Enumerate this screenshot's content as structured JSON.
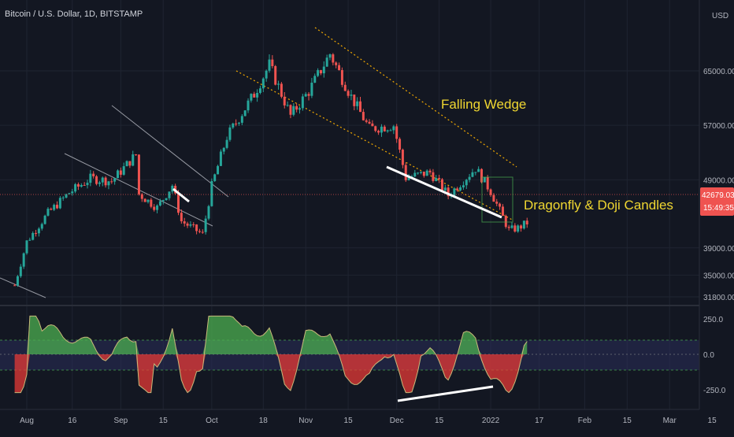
{
  "header": {
    "title": "Bitcoin / U.S. Dollar, 1D, BITSTAMP",
    "currency": "USD"
  },
  "colors": {
    "background": "#131722",
    "up": "#26a69a",
    "down": "#ef5350",
    "annotation": "#f0d731",
    "channel": "#f2a900",
    "last_price_bg": "#ef5350"
  },
  "last_price": {
    "value": "42679.03",
    "countdown": "15:49:35"
  },
  "annotations": [
    "Falling Wedge",
    "Dragonfly & Doji Candles"
  ],
  "chart_data": [
    {
      "type": "candlestick",
      "title": "Bitcoin / U.S. Dollar, 1D, BITSTAMP",
      "y_ticks": [
        65000,
        57000,
        49000,
        39000,
        35000,
        31800
      ],
      "y_tick_labels": [
        "65000.00",
        "57000.00",
        "49000.00",
        "39000.00",
        "35000.00",
        "31800.00"
      ],
      "x_ticks": [
        "Aug",
        "16",
        "Sep",
        "15",
        "Oct",
        "18",
        "Nov",
        "15",
        "Dec",
        "15",
        "2022",
        "17",
        "Feb",
        "15",
        "Mar",
        "15"
      ],
      "approx_closes": [
        {
          "date": "2021-07-28",
          "close": 33500
        },
        {
          "date": "2021-08-01",
          "close": 39900
        },
        {
          "date": "2021-08-08",
          "close": 44100
        },
        {
          "date": "2021-08-15",
          "close": 47100
        },
        {
          "date": "2021-08-22",
          "close": 49200
        },
        {
          "date": "2021-08-29",
          "close": 48800
        },
        {
          "date": "2021-09-06",
          "close": 52700
        },
        {
          "date": "2021-09-07",
          "close": 46900
        },
        {
          "date": "2021-09-13",
          "close": 44900
        },
        {
          "date": "2021-09-18",
          "close": 48200
        },
        {
          "date": "2021-09-21",
          "close": 42900
        },
        {
          "date": "2021-09-28",
          "close": 41000
        },
        {
          "date": "2021-10-01",
          "close": 48100
        },
        {
          "date": "2021-10-06",
          "close": 55300
        },
        {
          "date": "2021-10-15",
          "close": 61600
        },
        {
          "date": "2021-10-20",
          "close": 65900
        },
        {
          "date": "2021-10-27",
          "close": 58400
        },
        {
          "date": "2021-11-02",
          "close": 62000
        },
        {
          "date": "2021-11-09",
          "close": 67500
        },
        {
          "date": "2021-11-16",
          "close": 61200
        },
        {
          "date": "2021-11-22",
          "close": 56500
        },
        {
          "date": "2021-11-30",
          "close": 57000
        },
        {
          "date": "2021-12-04",
          "close": 49300
        },
        {
          "date": "2021-12-12",
          "close": 50100
        },
        {
          "date": "2021-12-18",
          "close": 46700
        },
        {
          "date": "2021-12-27",
          "close": 50700
        },
        {
          "date": "2022-01-01",
          "close": 47300
        },
        {
          "date": "2022-01-07",
          "close": 41600
        },
        {
          "date": "2022-01-10",
          "close": 41900
        },
        {
          "date": "2022-01-13",
          "close": 42679
        }
      ]
    },
    {
      "type": "area",
      "title": "",
      "y_ticks": [
        250,
        0,
        -250
      ],
      "y_tick_labels": [
        "250.0",
        "0.0",
        "-250.0"
      ],
      "upper_band": 100,
      "lower_band": -100
    }
  ]
}
